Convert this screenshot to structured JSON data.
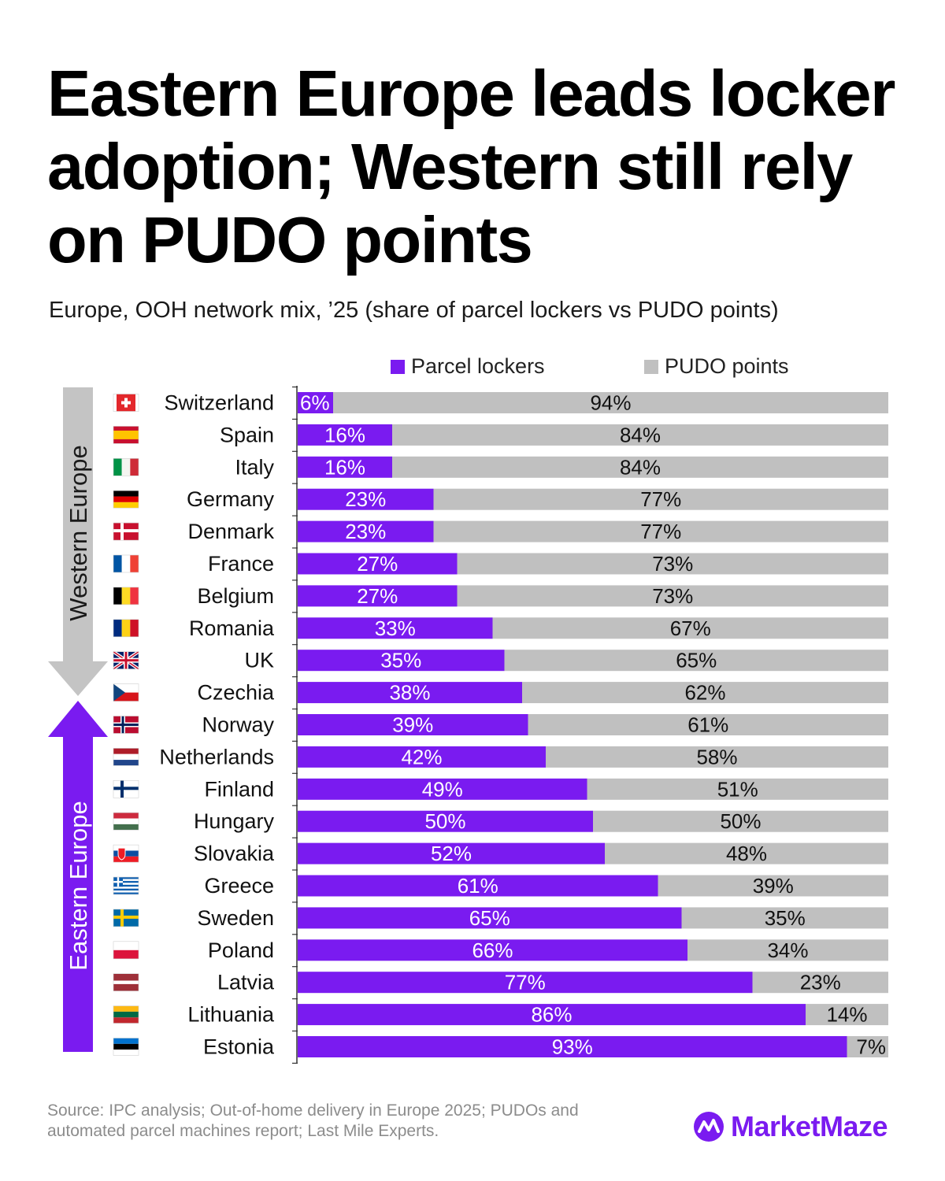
{
  "title": "Eastern Europe leads locker adoption; Western still rely on PUDO points",
  "subtitle": "Europe, OOH network mix, ’25 (share of parcel lockers vs PUDO points)",
  "colors": {
    "lockers": "#7a1bf0",
    "pudo": "#c0c0c0",
    "western_arrow": "#c4c4c4",
    "eastern_arrow": "#7a1bf0",
    "brand": "#7a1bf0"
  },
  "legend": {
    "lockers_label": "Parcel lockers",
    "pudo_label": "PUDO points"
  },
  "region_labels": {
    "western": "Western Europe",
    "eastern": "Eastern Europe"
  },
  "source": "Source: IPC analysis; Out-of-home delivery in Europe 2025; PUDOs and automated parcel machines report; Last Mile Experts.",
  "brand": {
    "name": "MarketMaze",
    "icon": "marketmaze-logo-icon"
  },
  "chart_data": {
    "type": "bar",
    "orientation": "horizontal",
    "stacked": true,
    "categories": [
      "Switzerland",
      "Spain",
      "Italy",
      "Germany",
      "Denmark",
      "France",
      "Belgium",
      "Romania",
      "UK",
      "Czechia",
      "Norway",
      "Netherlands",
      "Finland",
      "Hungary",
      "Slovakia",
      "Greece",
      "Sweden",
      "Poland",
      "Latvia",
      "Lithuania",
      "Estonia"
    ],
    "flags": [
      "flag-switzerland-icon",
      "flag-spain-icon",
      "flag-italy-icon",
      "flag-germany-icon",
      "flag-denmark-icon",
      "flag-france-icon",
      "flag-belgium-icon",
      "flag-romania-icon",
      "flag-uk-icon",
      "flag-czechia-icon",
      "flag-norway-icon",
      "flag-netherlands-icon",
      "flag-finland-icon",
      "flag-hungary-icon",
      "flag-slovakia-icon",
      "flag-greece-icon",
      "flag-sweden-icon",
      "flag-poland-icon",
      "flag-latvia-icon",
      "flag-lithuania-icon",
      "flag-estonia-icon"
    ],
    "series": [
      {
        "name": "Parcel lockers",
        "values": [
          6,
          16,
          16,
          23,
          23,
          27,
          27,
          33,
          35,
          38,
          39,
          42,
          49,
          50,
          52,
          61,
          65,
          66,
          77,
          86,
          93
        ]
      },
      {
        "name": "PUDO points",
        "values": [
          94,
          84,
          84,
          77,
          77,
          73,
          73,
          67,
          65,
          62,
          61,
          58,
          51,
          50,
          48,
          39,
          35,
          34,
          23,
          14,
          7
        ]
      }
    ],
    "value_suffix": "%",
    "xlim": [
      0,
      100
    ],
    "legend_position": "top"
  }
}
